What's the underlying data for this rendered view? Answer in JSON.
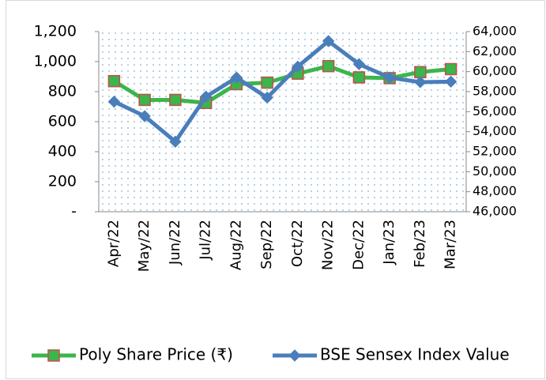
{
  "chart_data": {
    "type": "line",
    "categories": [
      "Apr/22",
      "May/22",
      "Jun/22",
      "Jul/22",
      "Aug/22",
      "Sep/22",
      "Oct/22",
      "Nov/22",
      "Dec/22",
      "Jan/23",
      "Feb/23",
      "Mar/23"
    ],
    "series": [
      {
        "name": "Poly Share Price (₹)",
        "color": "#3cb54a",
        "marker_edge": "#c0504d",
        "values": [
          870,
          745,
          745,
          725,
          850,
          860,
          920,
          970,
          895,
          890,
          930,
          950
        ]
      },
      {
        "name": "BSE Sensex Index Value",
        "color": "#4a7ebb",
        "axis": "y2",
        "values": [
          57000,
          55550,
          53000,
          57500,
          59400,
          57400,
          60500,
          63050,
          60750,
          59400,
          58950,
          59000
        ]
      }
    ],
    "ylim": [
      0,
      1200
    ],
    "yticks": [
      {
        "value": 0,
        "label": "-"
      },
      200,
      400,
      600,
      800,
      {
        "value": 1000,
        "label": "1,000"
      },
      {
        "value": 1200,
        "label": "1,200"
      }
    ],
    "y2lim": [
      46000,
      64000
    ],
    "y2ticks": [
      {
        "value": 46000,
        "label": "46,000"
      },
      {
        "value": 48000,
        "label": "48,000"
      },
      {
        "value": 50000,
        "label": "50,000"
      },
      {
        "value": 52000,
        "label": "52,000"
      },
      {
        "value": 54000,
        "label": "54,000"
      },
      {
        "value": 56000,
        "label": "56,000"
      },
      {
        "value": 58000,
        "label": "58,000"
      },
      {
        "value": 60000,
        "label": "60,000"
      },
      {
        "value": 62000,
        "label": "62,000"
      },
      {
        "value": 64000,
        "label": "64,000"
      }
    ],
    "grid": false,
    "legend": "bottom"
  }
}
